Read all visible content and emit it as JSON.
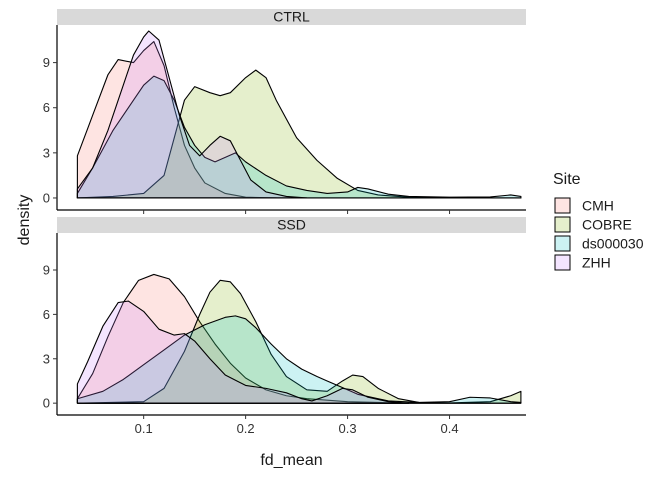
{
  "chart_data": {
    "type": "area",
    "subtype": "density",
    "xlabel": "fd_mean",
    "ylabel": "density",
    "xlim": [
      0.015,
      0.475
    ],
    "x_ticks": [
      0.1,
      0.2,
      0.3,
      0.4
    ],
    "x_tick_labels": [
      "0.1",
      "0.2",
      "0.3",
      "0.4"
    ],
    "ylim": [
      -0.8,
      11.5
    ],
    "y_ticks": [
      0,
      3,
      6,
      9
    ],
    "y_tick_labels": [
      "0",
      "3",
      "6",
      "9"
    ],
    "grid": false,
    "legend": {
      "title": "Site",
      "placement": "right",
      "entries": [
        {
          "label": "CMH",
          "color": "#F8766D"
        },
        {
          "label": "COBRE",
          "color": "#7CAE00"
        },
        {
          "label": "ds000030",
          "color": "#00BFC4"
        },
        {
          "label": "ZHH",
          "color": "#C77CFF"
        }
      ]
    },
    "panels": [
      {
        "strip": "CTRL",
        "series": [
          {
            "name": "CMH",
            "color": "#F8766D",
            "points": [
              [
                0.035,
                2.8
              ],
              [
                0.05,
                5.5
              ],
              [
                0.065,
                8.2
              ],
              [
                0.075,
                9.2
              ],
              [
                0.09,
                9.0
              ],
              [
                0.1,
                9.8
              ],
              [
                0.11,
                10.4
              ],
              [
                0.12,
                8.8
              ],
              [
                0.13,
                6.0
              ],
              [
                0.14,
                3.5
              ],
              [
                0.15,
                2.0
              ],
              [
                0.16,
                1.0
              ],
              [
                0.18,
                0.3
              ],
              [
                0.2,
                0.05
              ],
              [
                0.23,
                0
              ]
            ]
          },
          {
            "name": "COBRE",
            "color": "#7CAE00",
            "points": [
              [
                0.035,
                0
              ],
              [
                0.07,
                0.1
              ],
              [
                0.1,
                0.3
              ],
              [
                0.12,
                1.5
              ],
              [
                0.13,
                4.0
              ],
              [
                0.14,
                6.5
              ],
              [
                0.15,
                7.4
              ],
              [
                0.165,
                7.0
              ],
              [
                0.175,
                6.8
              ],
              [
                0.185,
                7.0
              ],
              [
                0.2,
                8.0
              ],
              [
                0.21,
                8.5
              ],
              [
                0.22,
                8.0
              ],
              [
                0.23,
                6.5
              ],
              [
                0.25,
                4.0
              ],
              [
                0.27,
                2.5
              ],
              [
                0.29,
                1.3
              ],
              [
                0.31,
                0.5
              ],
              [
                0.33,
                0.2
              ],
              [
                0.36,
                0.05
              ],
              [
                0.4,
                0.02
              ],
              [
                0.44,
                0
              ],
              [
                0.47,
                0
              ]
            ]
          },
          {
            "name": "ds000030",
            "color": "#00BFC4",
            "points": [
              [
                0.035,
                0.3
              ],
              [
                0.05,
                2.0
              ],
              [
                0.07,
                4.5
              ],
              [
                0.09,
                6.5
              ],
              [
                0.1,
                7.5
              ],
              [
                0.11,
                8.1
              ],
              [
                0.12,
                7.8
              ],
              [
                0.13,
                6.5
              ],
              [
                0.14,
                4.7
              ],
              [
                0.15,
                3.5
              ],
              [
                0.16,
                2.7
              ],
              [
                0.17,
                2.4
              ],
              [
                0.18,
                2.7
              ],
              [
                0.19,
                3.0
              ],
              [
                0.2,
                2.4
              ],
              [
                0.22,
                1.5
              ],
              [
                0.24,
                0.8
              ],
              [
                0.26,
                0.5
              ],
              [
                0.28,
                0.3
              ],
              [
                0.3,
                0.4
              ],
              [
                0.31,
                0.7
              ],
              [
                0.32,
                0.6
              ],
              [
                0.34,
                0.25
              ],
              [
                0.36,
                0.1
              ],
              [
                0.4,
                0.05
              ],
              [
                0.44,
                0.07
              ],
              [
                0.46,
                0.2
              ],
              [
                0.47,
                0.1
              ]
            ]
          },
          {
            "name": "ZHH",
            "color": "#C77CFF",
            "points": [
              [
                0.035,
                0.6
              ],
              [
                0.05,
                2.0
              ],
              [
                0.065,
                4.5
              ],
              [
                0.08,
                7.5
              ],
              [
                0.09,
                9.5
              ],
              [
                0.1,
                10.7
              ],
              [
                0.105,
                11.1
              ],
              [
                0.115,
                10.5
              ],
              [
                0.125,
                8.0
              ],
              [
                0.135,
                5.5
              ],
              [
                0.145,
                3.5
              ],
              [
                0.155,
                2.8
              ],
              [
                0.165,
                3.5
              ],
              [
                0.175,
                4.1
              ],
              [
                0.185,
                3.8
              ],
              [
                0.195,
                2.5
              ],
              [
                0.205,
                1.2
              ],
              [
                0.22,
                0.4
              ],
              [
                0.24,
                0.1
              ],
              [
                0.26,
                0.0
              ]
            ]
          }
        ]
      },
      {
        "strip": "SSD",
        "series": [
          {
            "name": "CMH",
            "color": "#F8766D",
            "points": [
              [
                0.035,
                0.3
              ],
              [
                0.05,
                2.0
              ],
              [
                0.065,
                4.5
              ],
              [
                0.08,
                6.8
              ],
              [
                0.095,
                8.3
              ],
              [
                0.11,
                8.7
              ],
              [
                0.125,
                8.4
              ],
              [
                0.14,
                7.2
              ],
              [
                0.155,
                5.5
              ],
              [
                0.17,
                4.0
              ],
              [
                0.185,
                2.7
              ],
              [
                0.2,
                1.7
              ],
              [
                0.22,
                0.9
              ],
              [
                0.24,
                0.5
              ],
              [
                0.26,
                0.3
              ],
              [
                0.28,
                0.2
              ],
              [
                0.3,
                0.1
              ],
              [
                0.33,
                0.05
              ],
              [
                0.36,
                0
              ]
            ]
          },
          {
            "name": "COBRE",
            "color": "#7CAE00",
            "points": [
              [
                0.035,
                0
              ],
              [
                0.1,
                0.1
              ],
              [
                0.12,
                1.0
              ],
              [
                0.14,
                3.5
              ],
              [
                0.155,
                6.0
              ],
              [
                0.165,
                7.5
              ],
              [
                0.175,
                8.3
              ],
              [
                0.185,
                8.2
              ],
              [
                0.195,
                7.4
              ],
              [
                0.21,
                5.5
              ],
              [
                0.225,
                3.3
              ],
              [
                0.24,
                1.8
              ],
              [
                0.26,
                0.9
              ],
              [
                0.28,
                0.8
              ],
              [
                0.295,
                1.5
              ],
              [
                0.305,
                1.9
              ],
              [
                0.315,
                1.8
              ],
              [
                0.33,
                1.0
              ],
              [
                0.35,
                0.3
              ],
              [
                0.37,
                0.05
              ],
              [
                0.4,
                0.02
              ],
              [
                0.44,
                0.1
              ],
              [
                0.46,
                0.5
              ],
              [
                0.47,
                0.8
              ]
            ]
          },
          {
            "name": "ds000030",
            "color": "#00BFC4",
            "points": [
              [
                0.035,
                0.3
              ],
              [
                0.06,
                0.8
              ],
              [
                0.08,
                1.6
              ],
              [
                0.1,
                2.6
              ],
              [
                0.12,
                3.6
              ],
              [
                0.14,
                4.6
              ],
              [
                0.16,
                5.3
              ],
              [
                0.18,
                5.8
              ],
              [
                0.19,
                5.9
              ],
              [
                0.2,
                5.7
              ],
              [
                0.21,
                5.1
              ],
              [
                0.225,
                4.0
              ],
              [
                0.24,
                3.0
              ],
              [
                0.255,
                2.3
              ],
              [
                0.27,
                1.8
              ],
              [
                0.28,
                1.5
              ],
              [
                0.29,
                1.2
              ],
              [
                0.31,
                0.6
              ],
              [
                0.34,
                0.15
              ],
              [
                0.37,
                0.05
              ],
              [
                0.4,
                0.1
              ],
              [
                0.42,
                0.4
              ],
              [
                0.44,
                0.35
              ],
              [
                0.46,
                0.1
              ],
              [
                0.47,
                0.05
              ]
            ]
          },
          {
            "name": "ZHH",
            "color": "#C77CFF",
            "points": [
              [
                0.035,
                1.3
              ],
              [
                0.045,
                2.8
              ],
              [
                0.06,
                5.2
              ],
              [
                0.075,
                6.8
              ],
              [
                0.085,
                6.9
              ],
              [
                0.1,
                6.2
              ],
              [
                0.115,
                5.0
              ],
              [
                0.13,
                4.6
              ],
              [
                0.14,
                4.7
              ],
              [
                0.15,
                4.2
              ],
              [
                0.165,
                3.0
              ],
              [
                0.18,
                1.9
              ],
              [
                0.2,
                1.2
              ],
              [
                0.22,
                1.0
              ],
              [
                0.24,
                0.7
              ],
              [
                0.255,
                0.3
              ],
              [
                0.265,
                0.15
              ],
              [
                0.28,
                0.5
              ],
              [
                0.295,
                1.0
              ],
              [
                0.305,
                0.9
              ],
              [
                0.32,
                0.4
              ],
              [
                0.34,
                0.1
              ],
              [
                0.36,
                0
              ]
            ]
          }
        ]
      }
    ]
  }
}
